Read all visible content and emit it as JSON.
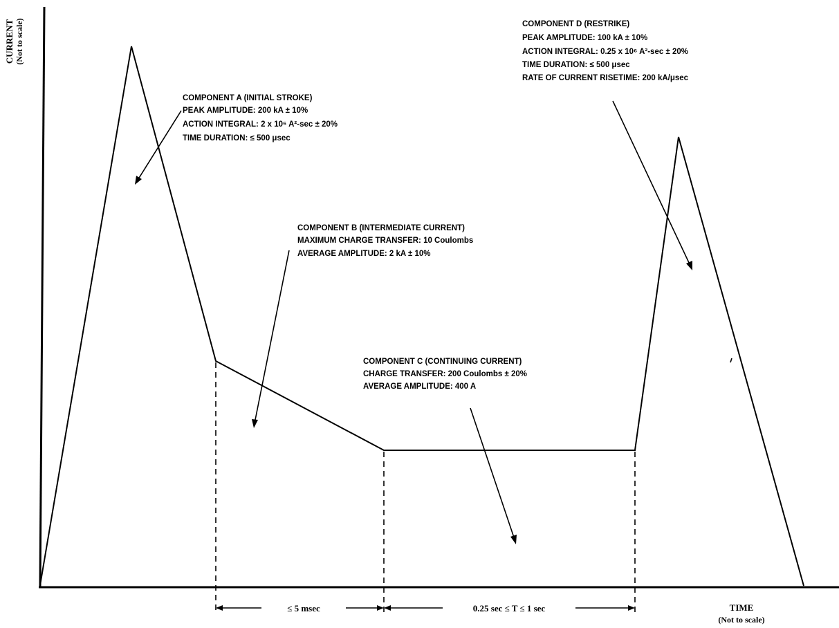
{
  "y_axis": {
    "title": "CURRENT",
    "subtitle": "(Not to scale)"
  },
  "x_axis": {
    "title": "TIME",
    "subtitle": "(Not to scale)"
  },
  "components": {
    "a": {
      "lines": [
        "COMPONENT A (INITIAL STROKE)",
        "PEAK AMPLITUDE:  200 kA ± 10%",
        "ACTION INTEGRAL:  2 x 10⁶ A²-sec ± 20%",
        "TIME DURATION:  ≤ 500 μsec"
      ]
    },
    "b": {
      "lines": [
        "COMPONENT B (INTERMEDIATE CURRENT)",
        "MAXIMUM CHARGE TRANSFER:  10 Coulombs",
        "AVERAGE AMPLITUDE:  2 kA ± 10%"
      ]
    },
    "c": {
      "lines": [
        "COMPONENT C (CONTINUING CURRENT)",
        "CHARGE TRANSFER:  200 Coulombs ± 20%",
        "AVERAGE AMPLITUDE:  400 A"
      ]
    },
    "d": {
      "lines": [
        "COMPONENT D (RESTRIKE)",
        "PEAK AMPLITUDE:  100 kA ± 10%",
        "ACTION INTEGRAL:  0.25 x 10⁶ A²-sec ± 20%",
        "TIME DURATION:  ≤ 500 μsec",
        "RATE OF CURRENT RISETIME:  200 kA/μsec"
      ]
    }
  },
  "intervals": {
    "b_duration": "≤ 5 msec",
    "c_duration": "0.25 sec ≤ T ≤ 1 sec"
  },
  "colors": {
    "line": "#000000",
    "background": "#ffffff"
  }
}
